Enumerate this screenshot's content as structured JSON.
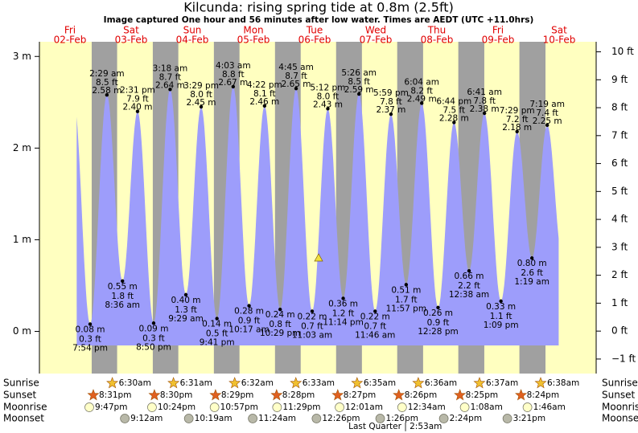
{
  "chart_data": {
    "type": "tide",
    "title": "Kilcunda: rising  spring tide at 0.8m (2.5ft)",
    "subtitle": "Image captured One hour and 56 minutes after low water. Times are AEDT (UTC +11.0hrs)",
    "ylim": [
      -0.46,
      3.16
    ],
    "yticks": [
      {
        "value": 0,
        "label": "0 m"
      },
      {
        "value": 1,
        "label": "1 m"
      },
      {
        "value": 2,
        "label": "2 m"
      },
      {
        "value": 3,
        "label": "3 m"
      }
    ],
    "y2lim": [
      -1.52,
      10.36
    ],
    "y2ticks": [
      {
        "value": -1,
        "label": "−1 ft"
      },
      {
        "value": 0,
        "label": "0 ft"
      },
      {
        "value": 1,
        "label": "1 ft"
      },
      {
        "value": 2,
        "label": "2 ft"
      },
      {
        "value": 3,
        "label": "3 ft"
      },
      {
        "value": 4,
        "label": "4 ft"
      },
      {
        "value": 5,
        "label": "5 ft"
      },
      {
        "value": 6,
        "label": "6 ft"
      },
      {
        "value": 7,
        "label": "7 ft"
      },
      {
        "value": 8,
        "label": "8 ft"
      },
      {
        "value": 9,
        "label": "9 ft"
      },
      {
        "value": 10,
        "label": "10 ft"
      }
    ],
    "color": "#9d9dfb",
    "rows": [
      "Sunrise",
      "Sunset",
      "Moonrise",
      "Moonset"
    ],
    "days": [
      {
        "weekday": "Fri",
        "date": "02-Feb",
        "tides": [
          {
            "time": "7:54 pm",
            "value": 0.08,
            "value_label": "0.08 m",
            "ft": "0.3 ft"
          }
        ],
        "sunset": "8:31pm",
        "moonrise": "9:47pm"
      },
      {
        "weekday": "Sat",
        "date": "03-Feb",
        "tides": [
          {
            "time": "2:29 am",
            "value": 2.58,
            "value_label": "2.58 m",
            "ft": "8.5 ft"
          },
          {
            "time": "8:36 am",
            "value": 0.55,
            "value_label": "0.55 m",
            "ft": "1.8 ft"
          },
          {
            "time": "2:31 pm",
            "value": 2.4,
            "value_label": "2.40 m",
            "ft": "7.9 ft"
          },
          {
            "time": "8:50 pm",
            "value": 0.09,
            "value_label": "0.09 m",
            "ft": "0.3 ft"
          }
        ],
        "sunrise": "6:30am",
        "sunset": "8:30pm",
        "moonrise": "10:24pm",
        "moonset": "9:12am"
      },
      {
        "weekday": "Sun",
        "date": "04-Feb",
        "tides": [
          {
            "time": "3:18 am",
            "value": 2.64,
            "value_label": "2.64 m",
            "ft": "8.7 ft"
          },
          {
            "time": "9:29 am",
            "value": 0.4,
            "value_label": "0.40 m",
            "ft": "1.3 ft"
          },
          {
            "time": "3:29 pm",
            "value": 2.45,
            "value_label": "2.45 m",
            "ft": "8.0 ft"
          },
          {
            "time": "9:41 pm",
            "value": 0.14,
            "value_label": "0.14 m",
            "ft": "0.5 ft"
          }
        ],
        "sunrise": "6:31am",
        "sunset": "8:29pm",
        "moonrise": "10:57pm",
        "moonset": "10:19am"
      },
      {
        "weekday": "Mon",
        "date": "05-Feb",
        "tides": [
          {
            "time": "4:03 am",
            "value": 2.67,
            "value_label": "2.67 m",
            "ft": "8.8 ft"
          },
          {
            "time": "10:17 am",
            "value": 0.28,
            "value_label": "0.28 m",
            "ft": "0.9 ft"
          },
          {
            "time": "4:22 pm",
            "value": 2.46,
            "value_label": "2.46 m",
            "ft": "8.1 ft"
          },
          {
            "time": "10:29 pm",
            "value": 0.24,
            "value_label": "0.24 m",
            "ft": "0.8 ft"
          }
        ],
        "sunrise": "6:32am",
        "sunset": "8:28pm",
        "moonrise": "11:29pm",
        "moonset": "11:24am"
      },
      {
        "weekday": "Tue",
        "date": "06-Feb",
        "tides": [
          {
            "time": "4:45 am",
            "value": 2.65,
            "value_label": "2.65 m",
            "ft": "8.7 ft"
          },
          {
            "time": "11:03 am",
            "value": 0.22,
            "value_label": "0.22 m",
            "ft": "0.7 ft"
          },
          {
            "time": "5:12 pm",
            "value": 2.43,
            "value_label": "2.43 m",
            "ft": "8.0 ft"
          },
          {
            "time": "11:14 pm",
            "value": 0.36,
            "value_label": "0.36 m",
            "ft": "1.2 ft"
          }
        ],
        "sunrise": "6:33am",
        "sunset": "8:27pm",
        "moonset": "12:26pm"
      },
      {
        "weekday": "Wed",
        "date": "07-Feb",
        "tides": [
          {
            "time": "5:26 am",
            "value": 2.59,
            "value_label": "2.59 m",
            "ft": "8.5 ft"
          },
          {
            "time": "11:46 am",
            "value": 0.22,
            "value_label": "0.22 m",
            "ft": "0.7 ft"
          },
          {
            "time": "5:59 pm",
            "value": 2.37,
            "value_label": "2.37 m",
            "ft": "7.8 ft"
          },
          {
            "time": "11:57 pm",
            "value": 0.51,
            "value_label": "0.51 m",
            "ft": "1.7 ft"
          }
        ],
        "sunrise": "6:35am",
        "sunset": "8:26pm",
        "moonrise": "12:01am",
        "moonset": "1:26pm",
        "moon_phase": "Last Quarter | 2:53am"
      },
      {
        "weekday": "Thu",
        "date": "08-Feb",
        "tides": [
          {
            "time": "6:04 am",
            "value": 2.49,
            "value_label": "2.49 m",
            "ft": "8.2 ft"
          },
          {
            "time": "12:28 pm",
            "value": 0.26,
            "value_label": "0.26 m",
            "ft": "0.9 ft"
          },
          {
            "time": "6:44 pm",
            "value": 2.28,
            "value_label": "2.28 m",
            "ft": "7.5 ft"
          }
        ],
        "sunrise": "6:36am",
        "sunset": "8:25pm",
        "moonrise": "12:34am",
        "moonset": "2:24pm"
      },
      {
        "weekday": "Fri",
        "date": "09-Feb",
        "tides": [
          {
            "time": "12:38 am",
            "value": 0.66,
            "value_label": "0.66 m",
            "ft": "2.2 ft"
          },
          {
            "time": "6:41 am",
            "value": 2.38,
            "value_label": "2.38 m",
            "ft": "7.8 ft"
          },
          {
            "time": "1:09 pm",
            "value": 0.33,
            "value_label": "0.33 m",
            "ft": "1.1 ft"
          },
          {
            "time": "7:29 pm",
            "value": 2.18,
            "value_label": "2.18 m",
            "ft": "7.2 ft"
          }
        ],
        "sunrise": "6:37am",
        "sunset": "8:24pm",
        "moonrise": "1:08am",
        "moonset": "3:21pm"
      },
      {
        "weekday": "Sat",
        "date": "10-Feb",
        "tides": [
          {
            "time": "1:19 am",
            "value": 0.8,
            "value_label": "0.80 m",
            "ft": "2.6 ft"
          },
          {
            "time": "7:19 am",
            "value": 2.25,
            "value_label": "2.25 m",
            "ft": "7.4 ft"
          }
        ],
        "sunrise": "6:38am",
        "moonrise": "1:46am"
      }
    ]
  }
}
